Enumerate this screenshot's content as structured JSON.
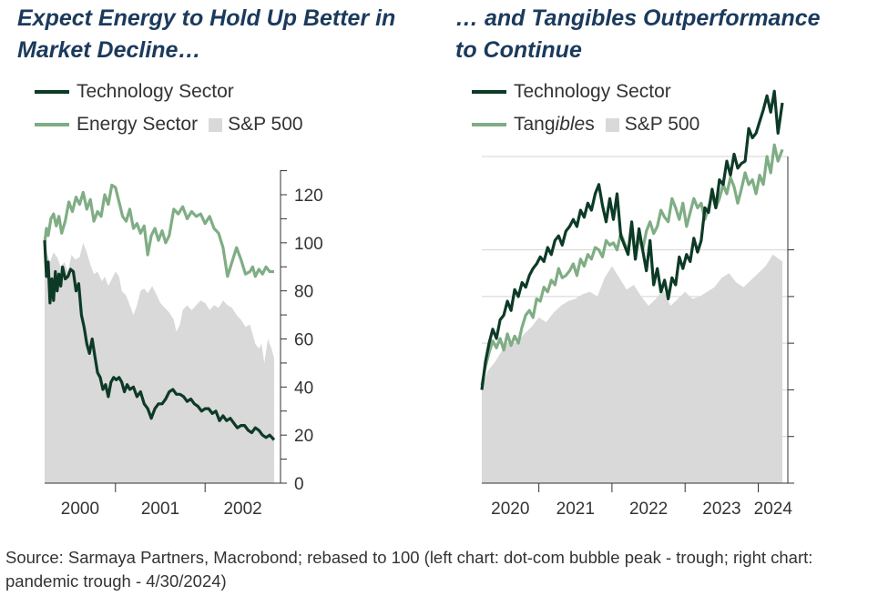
{
  "source_note": "Source: Sarmaya Partners, Macrobond; rebased to 100 (left chart: dot-com bubble peak - trough; right chart: pandemic trough - 4/30/2024)",
  "colors": {
    "technology": "#0d3a26",
    "energy": "#7fad84",
    "tangibles": "#7fad84",
    "sp500": "#d9d9d9",
    "title": "#1b3a5c"
  },
  "chart_data": [
    {
      "type": "line",
      "title_line1": "Expect Energy to Hold Up Better in",
      "title_line2": "Market Decline…",
      "legend": {
        "tech": "Technology Sector",
        "energy": "Energy Sector",
        "sp": "S&P 500"
      },
      "x_range": [
        2000.21,
        2002.77
      ],
      "ylim": [
        0,
        135
      ],
      "y_ticks": [
        0,
        20,
        40,
        60,
        80,
        100,
        120
      ],
      "y_tick_labels": [
        "0",
        "20",
        "40",
        "60",
        "80",
        "100",
        "120"
      ],
      "x_tick_years": [
        2000,
        2001,
        2002
      ],
      "x_tick_labels": [
        "2000",
        "2001",
        "2002"
      ],
      "series": [
        {
          "key": "sp500",
          "kind": "area",
          "x": [
            2000.21,
            2000.24,
            2000.27,
            2000.31,
            2000.35,
            2000.39,
            2000.43,
            2000.47,
            2000.51,
            2000.55,
            2000.6,
            2000.64,
            2000.68,
            2000.72,
            2000.76,
            2000.8,
            2000.85,
            2000.88,
            2000.92,
            2000.96,
            2001.0,
            2001.04,
            2001.07,
            2001.12,
            2001.16,
            2001.2,
            2001.24,
            2001.28,
            2001.32,
            2001.36,
            2001.41,
            2001.45,
            2001.5,
            2001.55,
            2001.6,
            2001.65,
            2001.68,
            2001.72,
            2001.75,
            2001.8,
            2001.85,
            2001.9,
            2001.95,
            2002.0,
            2002.05,
            2002.1,
            2002.15,
            2002.2,
            2002.25,
            2002.3,
            2002.35,
            2002.4,
            2002.45,
            2002.5,
            2002.53,
            2002.56,
            2002.6,
            2002.63,
            2002.66,
            2002.7,
            2002.74,
            2002.77
          ],
          "values": [
            100,
            95,
            92,
            96,
            94,
            90,
            92,
            88,
            95,
            93,
            94,
            100,
            96,
            91,
            87,
            88,
            84,
            86,
            82,
            85,
            88,
            86,
            80,
            78,
            74,
            70,
            74,
            80,
            81,
            79,
            82,
            79,
            75,
            73,
            71,
            68,
            63,
            66,
            72,
            74,
            72,
            74,
            76,
            75,
            72,
            74,
            73,
            76,
            74,
            73,
            70,
            68,
            65,
            66,
            62,
            58,
            56,
            58,
            50,
            60,
            56,
            52
          ]
        },
        {
          "key": "energy",
          "kind": "line",
          "x": [
            2000.21,
            2000.23,
            2000.25,
            2000.28,
            2000.31,
            2000.34,
            2000.37,
            2000.4,
            2000.44,
            2000.48,
            2000.52,
            2000.56,
            2000.6,
            2000.64,
            2000.68,
            2000.72,
            2000.76,
            2000.8,
            2000.84,
            2000.88,
            2000.92,
            2000.96,
            2001.0,
            2001.04,
            2001.08,
            2001.12,
            2001.16,
            2001.2,
            2001.24,
            2001.28,
            2001.32,
            2001.36,
            2001.4,
            2001.44,
            2001.48,
            2001.52,
            2001.56,
            2001.6,
            2001.65,
            2001.7,
            2001.75,
            2001.8,
            2001.85,
            2001.9,
            2001.95,
            2002.0,
            2002.05,
            2002.1,
            2002.15,
            2002.2,
            2002.25,
            2002.3,
            2002.35,
            2002.4,
            2002.45,
            2002.5,
            2002.53,
            2002.56,
            2002.6,
            2002.64,
            2002.68,
            2002.72,
            2002.77
          ],
          "values": [
            100,
            106,
            103,
            110,
            112,
            107,
            111,
            104,
            109,
            117,
            113,
            119,
            116,
            121,
            114,
            118,
            109,
            113,
            111,
            120,
            116,
            124,
            123,
            117,
            111,
            109,
            114,
            106,
            108,
            104,
            107,
            95,
            103,
            106,
            101,
            105,
            100,
            103,
            114,
            112,
            115,
            110,
            113,
            111,
            112,
            108,
            111,
            106,
            104,
            98,
            86,
            92,
            98,
            93,
            87,
            88,
            90,
            86,
            89,
            87,
            90,
            88,
            88
          ]
        },
        {
          "key": "tech",
          "kind": "line",
          "x": [
            2000.21,
            2000.23,
            2000.25,
            2000.27,
            2000.29,
            2000.31,
            2000.33,
            2000.35,
            2000.37,
            2000.39,
            2000.41,
            2000.44,
            2000.47,
            2000.5,
            2000.53,
            2000.56,
            2000.59,
            2000.62,
            2000.65,
            2000.68,
            2000.71,
            2000.74,
            2000.77,
            2000.8,
            2000.83,
            2000.86,
            2000.89,
            2000.92,
            2000.95,
            2000.98,
            2001.01,
            2001.04,
            2001.07,
            2001.1,
            2001.13,
            2001.16,
            2001.2,
            2001.24,
            2001.28,
            2001.32,
            2001.36,
            2001.4,
            2001.44,
            2001.48,
            2001.52,
            2001.56,
            2001.6,
            2001.64,
            2001.68,
            2001.72,
            2001.76,
            2001.8,
            2001.84,
            2001.88,
            2001.92,
            2001.96,
            2002.0,
            2002.04,
            2002.08,
            2002.12,
            2002.16,
            2002.2,
            2002.24,
            2002.28,
            2002.32,
            2002.36,
            2002.4,
            2002.44,
            2002.48,
            2002.52,
            2002.56,
            2002.6,
            2002.64,
            2002.68,
            2002.72,
            2002.77
          ],
          "values": [
            101,
            86,
            92,
            75,
            85,
            76,
            88,
            80,
            87,
            82,
            90,
            85,
            86,
            89,
            88,
            80,
            83,
            70,
            65,
            58,
            54,
            60,
            53,
            46,
            44,
            39,
            41,
            36,
            42,
            44,
            43,
            44,
            42,
            38,
            41,
            39,
            40,
            36,
            38,
            33,
            31,
            27,
            31,
            33,
            33,
            35,
            38,
            39,
            37,
            37,
            36,
            34,
            35,
            33,
            32,
            30,
            31,
            31,
            29,
            30,
            26,
            28,
            26,
            27,
            25,
            23,
            24,
            24,
            22,
            21,
            23,
            22,
            20,
            19,
            20,
            18
          ]
        }
      ]
    },
    {
      "type": "line",
      "title_line1": "… and Tangibles Outperformance",
      "title_line2": "to Continue",
      "legend": {
        "tech": "Technology Sector",
        "tangibles_pre": "Tang",
        "tangibles_it": "ible",
        "tangibles_post": "s",
        "sp": "S&P 500"
      },
      "x_range": [
        2020.22,
        2024.33
      ],
      "y_grid": [
        0,
        20,
        40,
        60,
        80,
        100
      ],
      "y_top": 140,
      "x_tick_years": [
        2020,
        2021,
        2022,
        2023,
        2024
      ],
      "x_tick_labels": [
        "2020",
        "2021",
        "2022",
        "2023",
        "2024"
      ],
      "series": [
        {
          "key": "sp500",
          "kind": "area",
          "x": [
            2020.22,
            2020.3,
            2020.4,
            2020.5,
            2020.6,
            2020.7,
            2020.8,
            2020.9,
            2021.0,
            2021.1,
            2021.2,
            2021.3,
            2021.4,
            2021.5,
            2021.6,
            2021.7,
            2021.8,
            2021.9,
            2022.0,
            2022.1,
            2022.2,
            2022.3,
            2022.4,
            2022.5,
            2022.6,
            2022.7,
            2022.8,
            2022.9,
            2023.0,
            2023.1,
            2023.2,
            2023.3,
            2023.4,
            2023.5,
            2023.6,
            2023.7,
            2023.8,
            2023.9,
            2024.0,
            2024.1,
            2024.2,
            2024.33
          ],
          "values": [
            41,
            48,
            52,
            57,
            61,
            60,
            64,
            67,
            71,
            69,
            73,
            76,
            78,
            79,
            81,
            82,
            80,
            88,
            93,
            88,
            83,
            85,
            80,
            76,
            79,
            83,
            76,
            79,
            82,
            79,
            80,
            82,
            84,
            88,
            90,
            86,
            84,
            87,
            90,
            93,
            98,
            95
          ]
        },
        {
          "key": "tangibles",
          "kind": "line",
          "x": [
            2020.22,
            2020.27,
            2020.32,
            2020.37,
            2020.42,
            2020.47,
            2020.52,
            2020.57,
            2020.62,
            2020.67,
            2020.72,
            2020.77,
            2020.82,
            2020.87,
            2020.92,
            2020.97,
            2021.02,
            2021.07,
            2021.12,
            2021.17,
            2021.22,
            2021.27,
            2021.32,
            2021.37,
            2021.42,
            2021.47,
            2021.52,
            2021.57,
            2021.62,
            2021.67,
            2021.72,
            2021.77,
            2021.82,
            2021.87,
            2021.92,
            2021.97,
            2022.02,
            2022.07,
            2022.12,
            2022.17,
            2022.22,
            2022.27,
            2022.32,
            2022.37,
            2022.42,
            2022.47,
            2022.52,
            2022.57,
            2022.62,
            2022.67,
            2022.72,
            2022.77,
            2022.82,
            2022.87,
            2022.92,
            2022.97,
            2023.02,
            2023.07,
            2023.12,
            2023.17,
            2023.22,
            2023.27,
            2023.32,
            2023.37,
            2023.42,
            2023.47,
            2023.52,
            2023.57,
            2023.62,
            2023.67,
            2023.72,
            2023.77,
            2023.82,
            2023.87,
            2023.92,
            2023.97,
            2024.02,
            2024.07,
            2024.12,
            2024.17,
            2024.22,
            2024.27,
            2024.33
          ],
          "values": [
            42,
            50,
            56,
            61,
            58,
            62,
            57,
            64,
            59,
            63,
            60,
            67,
            72,
            74,
            71,
            79,
            78,
            84,
            82,
            87,
            85,
            92,
            88,
            89,
            91,
            94,
            89,
            96,
            93,
            98,
            96,
            101,
            100,
            97,
            104,
            102,
            103,
            100,
            107,
            103,
            99,
            110,
            96,
            106,
            100,
            108,
            112,
            107,
            110,
            117,
            114,
            112,
            122,
            118,
            113,
            120,
            110,
            116,
            122,
            118,
            120,
            113,
            118,
            124,
            118,
            122,
            128,
            124,
            131,
            127,
            120,
            126,
            133,
            128,
            130,
            124,
            132,
            128,
            140,
            133,
            145,
            138,
            143
          ]
        },
        {
          "key": "tech",
          "kind": "line",
          "x": [
            2020.22,
            2020.27,
            2020.32,
            2020.37,
            2020.42,
            2020.47,
            2020.52,
            2020.57,
            2020.62,
            2020.67,
            2020.72,
            2020.77,
            2020.82,
            2020.87,
            2020.92,
            2020.97,
            2021.02,
            2021.07,
            2021.12,
            2021.17,
            2021.22,
            2021.27,
            2021.32,
            2021.37,
            2021.42,
            2021.47,
            2021.52,
            2021.57,
            2021.62,
            2021.67,
            2021.72,
            2021.77,
            2021.82,
            2021.87,
            2021.92,
            2021.97,
            2022.02,
            2022.07,
            2022.12,
            2022.17,
            2022.22,
            2022.27,
            2022.32,
            2022.37,
            2022.42,
            2022.47,
            2022.52,
            2022.57,
            2022.62,
            2022.67,
            2022.72,
            2022.77,
            2022.82,
            2022.87,
            2022.92,
            2022.97,
            2023.02,
            2023.07,
            2023.12,
            2023.17,
            2023.22,
            2023.27,
            2023.32,
            2023.37,
            2023.42,
            2023.47,
            2023.52,
            2023.57,
            2023.62,
            2023.67,
            2023.72,
            2023.77,
            2023.82,
            2023.87,
            2023.92,
            2023.97,
            2024.02,
            2024.07,
            2024.12,
            2024.17,
            2024.22,
            2024.27,
            2024.33
          ],
          "values": [
            40,
            52,
            60,
            66,
            62,
            70,
            72,
            78,
            74,
            83,
            80,
            86,
            84,
            89,
            92,
            94,
            97,
            95,
            101,
            98,
            104,
            106,
            102,
            108,
            110,
            113,
            110,
            117,
            114,
            120,
            117,
            124,
            128,
            119,
            112,
            122,
            113,
            124,
            106,
            102,
            98,
            112,
            96,
            109,
            100,
            91,
            104,
            85,
            92,
            82,
            87,
            79,
            88,
            85,
            97,
            92,
            98,
            95,
            105,
            99,
            104,
            118,
            116,
            126,
            118,
            130,
            128,
            138,
            132,
            141,
            135,
            137,
            138,
            152,
            148,
            150,
            155,
            160,
            166,
            159,
            168,
            150,
            163
          ]
        }
      ]
    }
  ]
}
